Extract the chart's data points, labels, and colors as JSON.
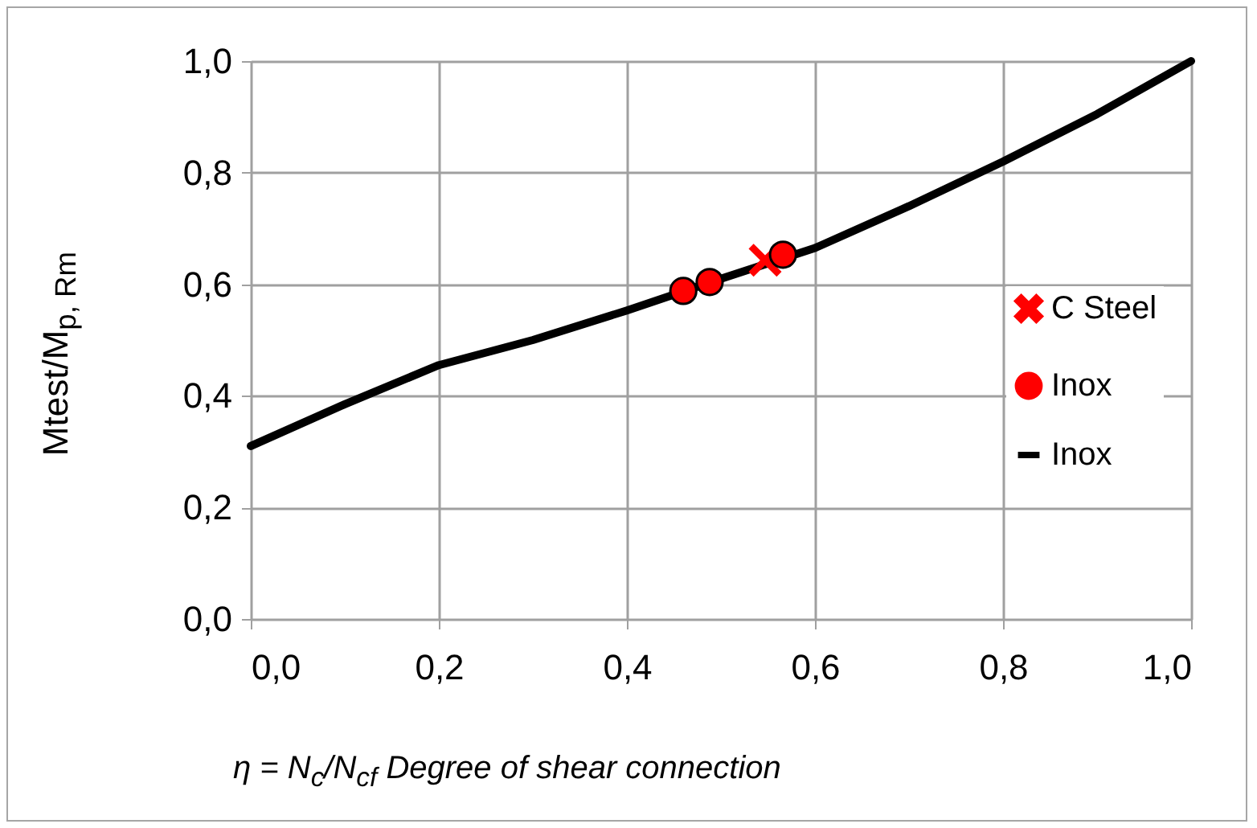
{
  "chart_data": {
    "type": "line",
    "xlabel": "η = N$_{c}$/N$_{cf}$  Degree of shear connection",
    "ylabel": "Mtest/M$_{p, Rm}$",
    "xlim": [
      0,
      1
    ],
    "ylim": [
      0,
      1
    ],
    "xticks": [
      {
        "value": 0,
        "label": "0,0"
      },
      {
        "value": 0.2,
        "label": "0,2"
      },
      {
        "value": 0.4,
        "label": "0,4"
      },
      {
        "value": 0.6,
        "label": "0,6"
      },
      {
        "value": 0.8,
        "label": "0,8"
      },
      {
        "value": 1,
        "label": "1,0"
      }
    ],
    "yticks": [
      {
        "value": 0,
        "label": "0,0"
      },
      {
        "value": 0.2,
        "label": "0,2"
      },
      {
        "value": 0.4,
        "label": "0,4"
      },
      {
        "value": 0.6,
        "label": "0,6"
      },
      {
        "value": 0.8,
        "label": "0,8"
      },
      {
        "value": 1,
        "label": "1,0"
      }
    ],
    "grid": true,
    "legend": "right",
    "series": [
      {
        "name": "C Steel",
        "type": "scatter",
        "marker": "cross",
        "color": "#ff0000",
        "x": [
          0.547
        ],
        "values": [
          0.643
        ]
      },
      {
        "name": "Inox",
        "type": "scatter",
        "marker": "circle",
        "color": "#ff0000",
        "x": [
          0.46,
          0.488,
          0.566
        ],
        "values": [
          0.588,
          0.604,
          0.653
        ]
      },
      {
        "name": "Inox",
        "color": "#000000",
        "x": [
          0,
          0.1,
          0.2,
          0.3,
          0.4,
          0.5,
          0.6,
          0.7,
          0.8,
          0.9,
          1
        ],
        "values": [
          0.31,
          0.385,
          0.455,
          0.5,
          0.553,
          0.61,
          0.665,
          0.74,
          0.82,
          0.905,
          1
        ]
      }
    ]
  }
}
